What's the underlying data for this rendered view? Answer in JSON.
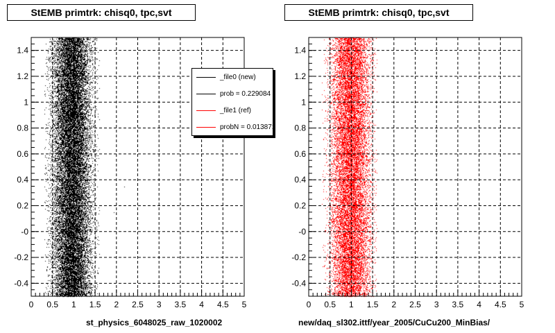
{
  "left_panel": {
    "title": "StEMB primtrk: chisq0, tpc,svt",
    "xtitle": "st_physics_6048025_raw_1020002"
  },
  "right_panel": {
    "title": "StEMB primtrk: chisq0, tpc,svt",
    "xtitle": "new/daq_sl302.ittf/year_2005/CuCu200_MinBias/"
  },
  "legend": {
    "entries": [
      {
        "label": "_file0 (new)",
        "color": "#000000"
      },
      {
        "label": "prob = 0.229084",
        "color": "#000000"
      },
      {
        "label": "_file1 (ref)",
        "color": "#ff0000"
      },
      {
        "label": "probN = 0.013871",
        "color": "#ff0000"
      }
    ]
  },
  "chart_data": [
    {
      "type": "scatter",
      "title": "StEMB primtrk: chisq0, tpc,svt",
      "xlabel": "st_physics_6048025_raw_1020002",
      "ylabel": "",
      "xlim": [
        0,
        5
      ],
      "ylim": [
        -0.5,
        1.5
      ],
      "xticks": [
        "0",
        "0.5",
        "1",
        "1.5",
        "2",
        "2.5",
        "3",
        "3.5",
        "4",
        "4.5",
        "5"
      ],
      "yticks": [
        "-0.4",
        "-0.2",
        "-0",
        "0.2",
        "0.4",
        "0.6",
        "0.8",
        "1",
        "1.2",
        "1.4"
      ],
      "grid": true,
      "color": "#000000",
      "distribution": {
        "x_center": 0.95,
        "x_spread": 0.22,
        "x_min": 0.3,
        "x_max": 1.6,
        "points": 22000
      }
    },
    {
      "type": "scatter",
      "title": "StEMB primtrk: chisq0, tpc,svt",
      "xlabel": "new/daq_sl302.ittf/year_2005/CuCu200_MinBias/",
      "ylabel": "",
      "xlim": [
        0,
        5
      ],
      "ylim": [
        -0.5,
        1.5
      ],
      "xticks": [
        "0",
        "0.5",
        "1",
        "1.5",
        "2",
        "2.5",
        "3",
        "3.5",
        "4",
        "4.5",
        "5"
      ],
      "yticks": [
        "-0.4",
        "-0.2",
        "-0",
        "0.2",
        "0.4",
        "0.6",
        "0.8",
        "1",
        "1.2",
        "1.4"
      ],
      "grid": true,
      "color": "#ff0000",
      "distribution": {
        "x_center": 0.98,
        "x_spread": 0.23,
        "x_min": 0.3,
        "x_max": 1.6,
        "points": 16000
      }
    }
  ]
}
